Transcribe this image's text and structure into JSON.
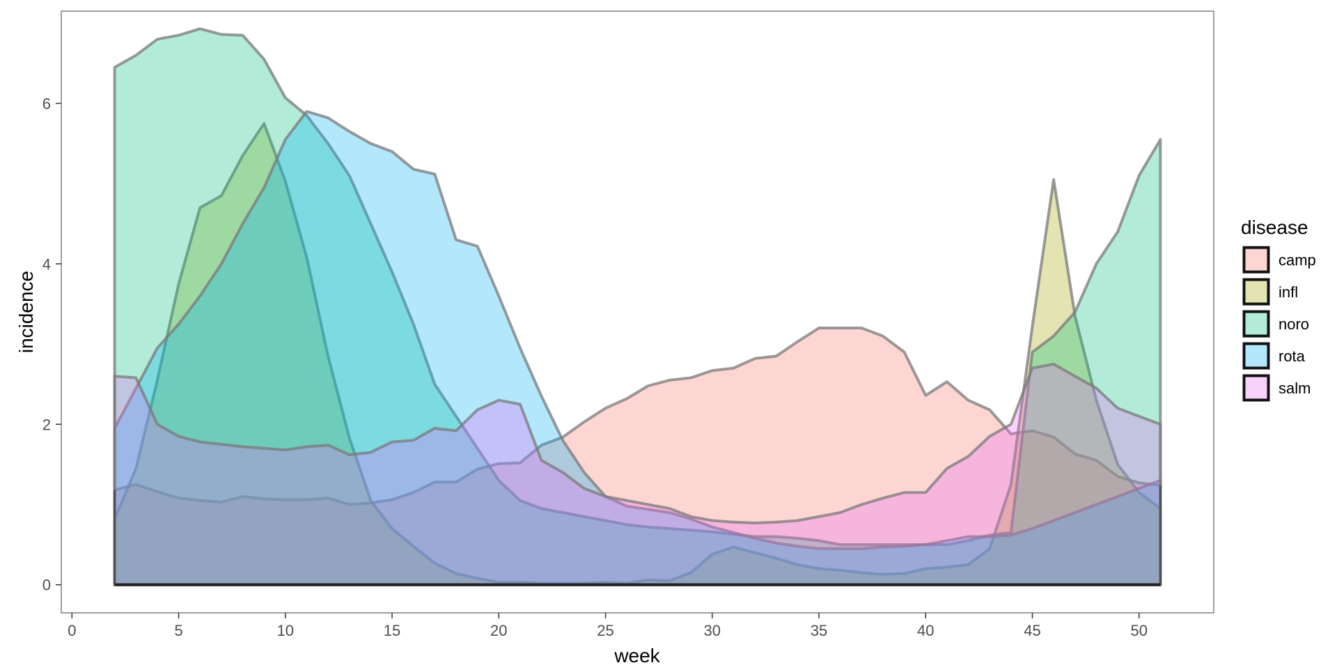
{
  "chart_data": {
    "type": "area",
    "title": "",
    "xlabel": "week",
    "ylabel": "incidence",
    "xlim": [
      -0.5,
      53.5
    ],
    "ylim": [
      -0.35,
      7.15
    ],
    "xticks": [
      0,
      5,
      10,
      15,
      20,
      25,
      30,
      35,
      40,
      45,
      50
    ],
    "yticks": [
      0,
      2,
      4,
      6
    ],
    "grid": false,
    "legend_title": "disease",
    "legend_position": "right",
    "x": [
      2,
      3,
      4,
      5,
      6,
      7,
      8,
      9,
      10,
      11,
      12,
      13,
      14,
      15,
      16,
      17,
      18,
      19,
      20,
      21,
      22,
      23,
      24,
      25,
      26,
      27,
      28,
      29,
      30,
      31,
      32,
      33,
      34,
      35,
      36,
      37,
      38,
      39,
      40,
      41,
      42,
      43,
      44,
      45,
      46,
      47,
      48,
      49,
      50,
      51
    ],
    "series": [
      {
        "name": "camp",
        "color": "#F8766D",
        "values": [
          1.18,
          1.25,
          1.16,
          1.08,
          1.05,
          1.03,
          1.1,
          1.07,
          1.06,
          1.06,
          1.08,
          1.0,
          1.02,
          1.06,
          1.15,
          1.28,
          1.28,
          1.44,
          1.51,
          1.52,
          1.74,
          1.84,
          2.03,
          2.2,
          2.32,
          2.48,
          2.55,
          2.58,
          2.67,
          2.7,
          2.82,
          2.85,
          3.03,
          3.2,
          3.2,
          3.2,
          3.1,
          2.9,
          2.36,
          2.53,
          2.3,
          2.18,
          1.88,
          1.92,
          1.84,
          1.63,
          1.55,
          1.35,
          1.27,
          1.24
        ]
      },
      {
        "name": "infl",
        "color": "#A3A500",
        "values": [
          0.82,
          1.45,
          2.55,
          3.75,
          4.7,
          4.85,
          5.35,
          5.75,
          5.03,
          4.08,
          2.85,
          1.83,
          1.05,
          0.7,
          0.48,
          0.27,
          0.14,
          0.08,
          0.03,
          0.03,
          0.02,
          0.02,
          0.02,
          0.03,
          0.02,
          0.06,
          0.05,
          0.15,
          0.38,
          0.47,
          0.4,
          0.33,
          0.25,
          0.2,
          0.18,
          0.15,
          0.13,
          0.14,
          0.2,
          0.22,
          0.25,
          0.45,
          1.25,
          3.22,
          5.05,
          3.35,
          2.3,
          1.5,
          1.15,
          0.95
        ]
      },
      {
        "name": "noro",
        "color": "#00BF7D",
        "values": [
          6.45,
          6.6,
          6.8,
          6.85,
          6.93,
          6.86,
          6.85,
          6.55,
          6.07,
          5.85,
          5.5,
          5.1,
          4.5,
          3.9,
          3.25,
          2.5,
          2.1,
          1.7,
          1.3,
          1.05,
          0.95,
          0.9,
          0.85,
          0.8,
          0.75,
          0.72,
          0.7,
          0.68,
          0.66,
          0.63,
          0.6,
          0.6,
          0.58,
          0.55,
          0.5,
          0.5,
          0.5,
          0.5,
          0.5,
          0.5,
          0.55,
          0.62,
          0.65,
          2.9,
          3.1,
          3.4,
          4.0,
          4.4,
          5.1,
          5.55
        ]
      },
      {
        "name": "rota",
        "color": "#00B0F6",
        "values": [
          1.95,
          2.45,
          2.95,
          3.25,
          3.6,
          4.0,
          4.5,
          4.95,
          5.55,
          5.9,
          5.82,
          5.65,
          5.5,
          5.4,
          5.18,
          5.12,
          4.3,
          4.22,
          3.6,
          2.95,
          2.35,
          1.8,
          1.4,
          1.1,
          0.98,
          0.94,
          0.9,
          0.82,
          0.72,
          0.65,
          0.58,
          0.52,
          0.48,
          0.45,
          0.45,
          0.45,
          0.47,
          0.48,
          0.5,
          0.55,
          0.6,
          0.6,
          0.62,
          0.7,
          0.8,
          0.9,
          1.0,
          1.1,
          1.2,
          1.3
        ]
      },
      {
        "name": "salm",
        "color": "#E76BF3",
        "values": [
          2.6,
          2.58,
          2.0,
          1.85,
          1.78,
          1.75,
          1.72,
          1.7,
          1.68,
          1.72,
          1.74,
          1.62,
          1.65,
          1.78,
          1.8,
          1.95,
          1.92,
          2.18,
          2.3,
          2.25,
          1.55,
          1.4,
          1.2,
          1.1,
          1.05,
          1.0,
          0.95,
          0.85,
          0.8,
          0.78,
          0.77,
          0.78,
          0.8,
          0.85,
          0.9,
          1.0,
          1.08,
          1.15,
          1.15,
          1.45,
          1.6,
          1.85,
          2.0,
          2.7,
          2.75,
          2.6,
          2.45,
          2.2,
          2.1,
          2.0
        ]
      }
    ]
  }
}
